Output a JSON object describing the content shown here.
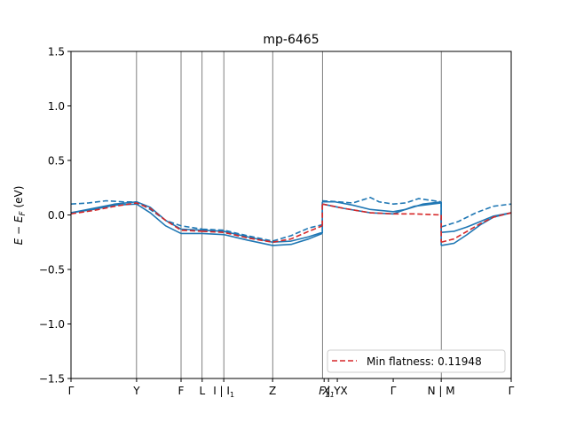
{
  "chart_data": {
    "type": "line",
    "title": "mp-6465",
    "xlabel": "",
    "ylabel": "E − E_F (eV)",
    "ylabel_parts": {
      "E1": "E",
      "minus": " − ",
      "E2": "E",
      "sub": "F",
      "unit": " (eV)"
    },
    "xlim": [
      0,
      1
    ],
    "ylim": [
      -1.5,
      1.5
    ],
    "yticks": [
      -1.5,
      -1.0,
      -0.5,
      0.0,
      0.5,
      1.0,
      1.5
    ],
    "ytick_labels": [
      "−1.5",
      "−1.0",
      "−0.5",
      "0.0",
      "0.5",
      "1.0",
      "1.5"
    ],
    "grid": false,
    "legend_position": "lower-right",
    "xticks": [
      {
        "x": 0.0,
        "label": "Γ"
      },
      {
        "x": 0.149,
        "label": "Y"
      },
      {
        "x": 0.25,
        "label": "F"
      },
      {
        "x": 0.298,
        "label": "L"
      },
      {
        "x": 0.347,
        "label": "I | I",
        "sub": "1"
      },
      {
        "x": 0.458,
        "label": "Z"
      },
      {
        "x": 0.575,
        "label": "F",
        "sub": "1",
        "italic": true
      },
      {
        "x": 0.585,
        "label": "X",
        "sub": "1",
        "italic": true
      },
      {
        "x": 0.605,
        "label": "| YX"
      },
      {
        "x": 0.732,
        "label": "Γ"
      },
      {
        "x": 0.841,
        "label": "N | M"
      },
      {
        "x": 1.0,
        "label": "Γ"
      }
    ],
    "segment_breaks": [
      0.149,
      0.25,
      0.298,
      0.347,
      0.458,
      0.571,
      0.841
    ],
    "series": [
      {
        "style": "solid",
        "color": "#1f77b4",
        "segments": [
          {
            "x": [
              0.0,
              0.05,
              0.1,
              0.149,
              0.18,
              0.215,
              0.25,
              0.298
            ],
            "y": [
              0.02,
              0.05,
              0.09,
              0.1,
              0.02,
              -0.1,
              -0.17,
              -0.17
            ]
          },
          {
            "x": [
              0.298,
              0.347,
              0.4,
              0.458,
              0.5,
              0.54,
              0.571
            ],
            "y": [
              -0.17,
              -0.18,
              -0.23,
              -0.28,
              -0.27,
              -0.22,
              -0.17
            ]
          },
          {
            "x": [
              0.571,
              0.62,
              0.68,
              0.732,
              0.78,
              0.841
            ],
            "y": [
              0.1,
              0.06,
              0.02,
              0.01,
              0.08,
              0.11
            ]
          },
          {
            "x": [
              0.841,
              0.87,
              0.9,
              0.93,
              0.96,
              1.0
            ],
            "y": [
              -0.28,
              -0.26,
              -0.18,
              -0.09,
              -0.02,
              0.02
            ]
          }
        ]
      },
      {
        "style": "solid",
        "color": "#1f77b4",
        "segments": [
          {
            "x": [
              0.0,
              0.05,
              0.1,
              0.149,
              0.18,
              0.215,
              0.25,
              0.298
            ],
            "y": [
              0.02,
              0.06,
              0.1,
              0.12,
              0.07,
              -0.05,
              -0.13,
              -0.14
            ]
          },
          {
            "x": [
              0.298,
              0.347,
              0.4,
              0.458,
              0.5,
              0.54,
              0.571
            ],
            "y": [
              -0.14,
              -0.15,
              -0.2,
              -0.25,
              -0.24,
              -0.2,
              -0.16
            ]
          },
          {
            "x": [
              0.571,
              0.6,
              0.64,
              0.68,
              0.732,
              0.76,
              0.8,
              0.841
            ],
            "y": [
              0.12,
              0.12,
              0.09,
              0.05,
              0.03,
              0.05,
              0.1,
              0.12
            ]
          },
          {
            "x": [
              0.841,
              0.87,
              0.9,
              0.93,
              0.96,
              1.0
            ],
            "y": [
              -0.16,
              -0.15,
              -0.11,
              -0.06,
              -0.01,
              0.02
            ]
          }
        ]
      },
      {
        "style": "dashed",
        "color": "#1f77b4",
        "segments": [
          {
            "x": [
              0.0,
              0.04,
              0.08,
              0.12,
              0.149,
              0.18,
              0.215,
              0.25,
              0.298
            ],
            "y": [
              0.1,
              0.11,
              0.13,
              0.12,
              0.12,
              0.05,
              -0.05,
              -0.1,
              -0.13
            ]
          },
          {
            "x": [
              0.298,
              0.347,
              0.4,
              0.458,
              0.5,
              0.54,
              0.571
            ],
            "y": [
              -0.13,
              -0.14,
              -0.19,
              -0.24,
              -0.19,
              -0.12,
              -0.09
            ]
          },
          {
            "x": [
              0.571,
              0.61,
              0.64,
              0.68,
              0.7,
              0.732,
              0.76,
              0.79,
              0.841
            ],
            "y": [
              0.13,
              0.12,
              0.11,
              0.16,
              0.12,
              0.1,
              0.11,
              0.15,
              0.12
            ]
          },
          {
            "x": [
              0.841,
              0.88,
              0.92,
              0.96,
              1.0
            ],
            "y": [
              -0.11,
              -0.06,
              0.02,
              0.08,
              0.1
            ]
          }
        ]
      }
    ],
    "flatness_line": {
      "name": "Min flatness: 0.11948",
      "style": "dashed",
      "color": "#d62728",
      "segments": [
        {
          "x": [
            0.0,
            0.05,
            0.1,
            0.149,
            0.18,
            0.215,
            0.25,
            0.298
          ],
          "y": [
            0.01,
            0.04,
            0.08,
            0.11,
            0.06,
            -0.05,
            -0.14,
            -0.15
          ]
        },
        {
          "x": [
            0.298,
            0.347,
            0.4,
            0.458,
            0.5,
            0.54,
            0.571
          ],
          "y": [
            -0.15,
            -0.16,
            -0.21,
            -0.25,
            -0.22,
            -0.15,
            -0.1
          ]
        },
        {
          "x": [
            0.571,
            0.62,
            0.68,
            0.732,
            0.78,
            0.841
          ],
          "y": [
            0.1,
            0.06,
            0.02,
            0.01,
            0.01,
            0.0
          ]
        },
        {
          "x": [
            0.841,
            0.87,
            0.9,
            0.93,
            0.96,
            1.0
          ],
          "y": [
            -0.25,
            -0.22,
            -0.15,
            -0.08,
            -0.02,
            0.02
          ]
        }
      ]
    },
    "legend": [
      {
        "label": "Min flatness: 0.11948",
        "style": "dashed",
        "color": "#d62728"
      }
    ]
  }
}
